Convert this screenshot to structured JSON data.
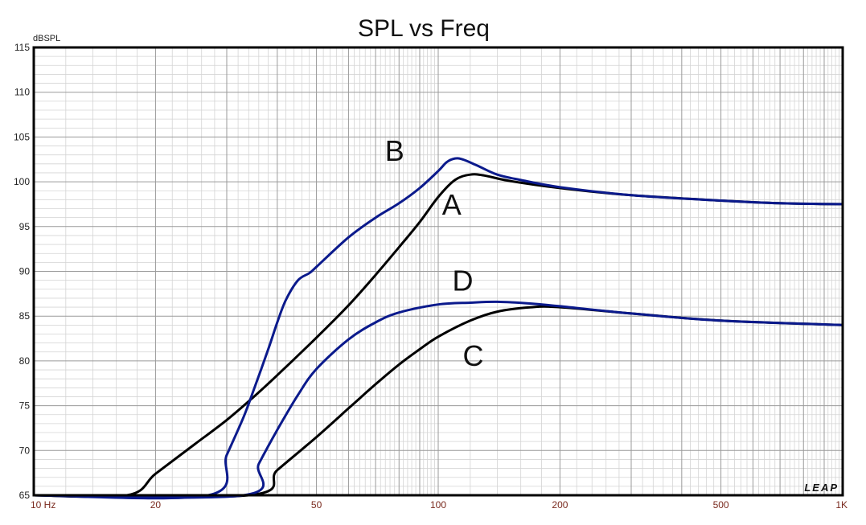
{
  "chart_data": {
    "type": "line",
    "title": "SPL vs Freq",
    "ylabel": "dBSPL",
    "xlabel": "",
    "x_scale": "log",
    "xlim": [
      10,
      1000
    ],
    "ylim": [
      65,
      115
    ],
    "grid": true,
    "yticks": [
      "115",
      "110",
      "105",
      "100",
      "95",
      "90",
      "85",
      "80",
      "75",
      "70",
      "65"
    ],
    "xticks": [
      {
        "value": 10,
        "label": "10 Hz"
      },
      {
        "value": 20,
        "label": "20"
      },
      {
        "value": 50,
        "label": "50"
      },
      {
        "value": 100,
        "label": "100"
      },
      {
        "value": 200,
        "label": "200"
      },
      {
        "value": 500,
        "label": "500"
      },
      {
        "value": 1000,
        "label": "1K"
      }
    ],
    "series": [
      {
        "name": "A",
        "color": "#000000",
        "label_at": [
          108,
          97.5
        ],
        "points": [
          [
            10,
            65
          ],
          [
            17,
            65
          ],
          [
            20,
            67.4
          ],
          [
            25,
            70.7
          ],
          [
            30,
            73.4
          ],
          [
            35,
            76
          ],
          [
            40,
            78.4
          ],
          [
            50,
            82.6
          ],
          [
            60,
            86.2
          ],
          [
            70,
            89.6
          ],
          [
            80,
            92.7
          ],
          [
            90,
            95.5
          ],
          [
            100,
            98.3
          ],
          [
            110,
            100.2
          ],
          [
            120,
            100.8
          ],
          [
            130,
            100.7
          ],
          [
            150,
            100.1
          ],
          [
            200,
            99.3
          ],
          [
            300,
            98.5
          ],
          [
            500,
            97.9
          ],
          [
            700,
            97.6
          ],
          [
            1000,
            97.5
          ]
        ]
      },
      {
        "name": "B",
        "color": "#0b1a8c",
        "label_at": [
          78,
          103.5
        ],
        "points": [
          [
            10,
            65
          ],
          [
            27,
            65
          ],
          [
            30,
            69.5
          ],
          [
            33,
            73.7
          ],
          [
            35,
            76.8
          ],
          [
            38,
            81.3
          ],
          [
            40,
            84.3
          ],
          [
            42,
            86.8
          ],
          [
            45,
            89
          ],
          [
            48,
            89.8
          ],
          [
            50,
            90.5
          ],
          [
            60,
            93.8
          ],
          [
            70,
            96
          ],
          [
            80,
            97.6
          ],
          [
            90,
            99.3
          ],
          [
            100,
            101.2
          ],
          [
            105,
            102.2
          ],
          [
            110,
            102.6
          ],
          [
            115,
            102.5
          ],
          [
            125,
            101.8
          ],
          [
            140,
            100.8
          ],
          [
            160,
            100.2
          ],
          [
            200,
            99.4
          ],
          [
            300,
            98.5
          ],
          [
            500,
            97.9
          ],
          [
            700,
            97.6
          ],
          [
            1000,
            97.5
          ]
        ]
      },
      {
        "name": "C",
        "color": "#000000",
        "label_at": [
          122,
          80.6
        ],
        "points": [
          [
            10,
            65
          ],
          [
            34,
            65
          ],
          [
            40,
            67.8
          ],
          [
            50,
            71.5
          ],
          [
            60,
            74.7
          ],
          [
            70,
            77.4
          ],
          [
            80,
            79.6
          ],
          [
            90,
            81.3
          ],
          [
            100,
            82.7
          ],
          [
            120,
            84.5
          ],
          [
            140,
            85.5
          ],
          [
            170,
            86
          ],
          [
            200,
            86
          ],
          [
            300,
            85.3
          ],
          [
            500,
            84.5
          ],
          [
            1000,
            84
          ]
        ]
      },
      {
        "name": "D",
        "color": "#0b1a8c",
        "label_at": [
          115,
          89
        ],
        "points": [
          [
            10,
            65
          ],
          [
            33,
            65
          ],
          [
            36,
            68.5
          ],
          [
            40,
            72.3
          ],
          [
            45,
            76.2
          ],
          [
            50,
            79.1
          ],
          [
            60,
            82.4
          ],
          [
            70,
            84.3
          ],
          [
            80,
            85.4
          ],
          [
            100,
            86.3
          ],
          [
            120,
            86.5
          ],
          [
            140,
            86.6
          ],
          [
            170,
            86.4
          ],
          [
            200,
            86.1
          ],
          [
            300,
            85.3
          ],
          [
            500,
            84.5
          ],
          [
            1000,
            84
          ]
        ]
      }
    ],
    "logo": "LEAP"
  }
}
